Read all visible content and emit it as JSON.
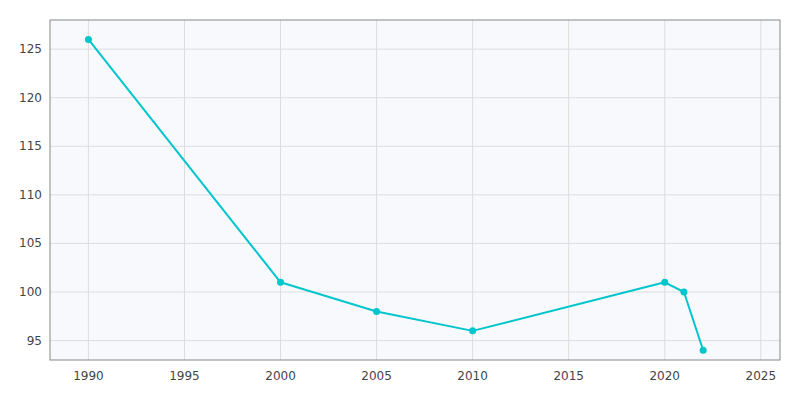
{
  "chart_data": {
    "type": "line",
    "x": [
      1990,
      2000,
      2005,
      2010,
      2020,
      2021,
      2022
    ],
    "values": [
      126,
      101,
      98,
      96,
      101,
      100,
      94
    ],
    "color": "#00C5CD",
    "marker": "circle",
    "xlim": [
      1988,
      2026
    ],
    "ylim": [
      93,
      128
    ],
    "xticks": [
      1990,
      1995,
      2000,
      2005,
      2010,
      2015,
      2020,
      2025
    ],
    "yticks": [
      95,
      100,
      105,
      110,
      115,
      120,
      125
    ],
    "grid": true
  }
}
